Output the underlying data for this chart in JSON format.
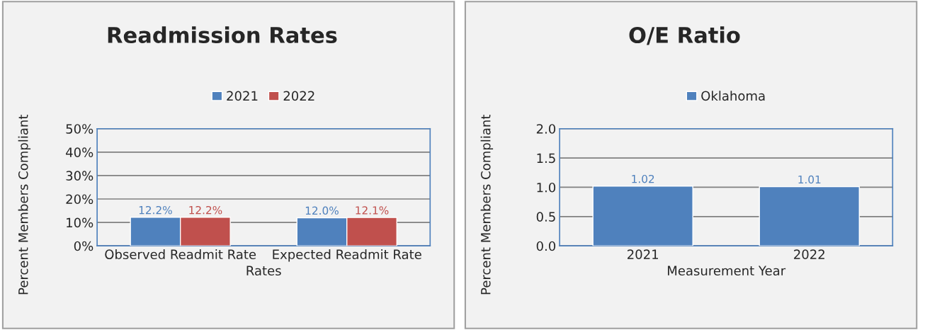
{
  "chart_data": [
    {
      "type": "bar",
      "title": "Readmission Rates",
      "xlabel": "Rates",
      "ylabel": "Percent Members Compliant",
      "categories": [
        "Observed Readmit Rate",
        "Expected Readmit Rate"
      ],
      "series": [
        {
          "name": "2021",
          "color": "#4f81bd",
          "values": [
            12.2,
            12.0
          ],
          "value_labels": [
            "12.2%",
            "12.0%"
          ]
        },
        {
          "name": "2022",
          "color": "#c0504d",
          "values": [
            12.2,
            12.1
          ],
          "value_labels": [
            "12.2%",
            "12.1%"
          ]
        }
      ],
      "ylim": [
        0,
        50
      ],
      "yticks": [
        {
          "value": 0,
          "label": "0%"
        },
        {
          "value": 10,
          "label": "10%"
        },
        {
          "value": 20,
          "label": "20%"
        },
        {
          "value": 30,
          "label": "30%"
        },
        {
          "value": 40,
          "label": "40%"
        },
        {
          "value": 50,
          "label": "50%"
        }
      ],
      "grid": "y",
      "legend": "top"
    },
    {
      "type": "bar",
      "title": "O/E Ratio",
      "xlabel": "Measurement Year",
      "ylabel": "Percent Members Compliant",
      "categories": [
        "2021",
        "2022"
      ],
      "series": [
        {
          "name": "Oklahoma",
          "color": "#4f81bd",
          "values": [
            1.02,
            1.01
          ]
        }
      ],
      "ylim": [
        0,
        2
      ],
      "yticks": [
        {
          "value": 0,
          "label": "0.0"
        },
        {
          "value": 0.5,
          "label": "0.5"
        },
        {
          "value": 1,
          "label": "1.0"
        },
        {
          "value": 1.5,
          "label": "1.5"
        },
        {
          "value": 2,
          "label": "2.0"
        }
      ],
      "grid": "y",
      "legend": "top",
      "data_labels": true
    }
  ]
}
